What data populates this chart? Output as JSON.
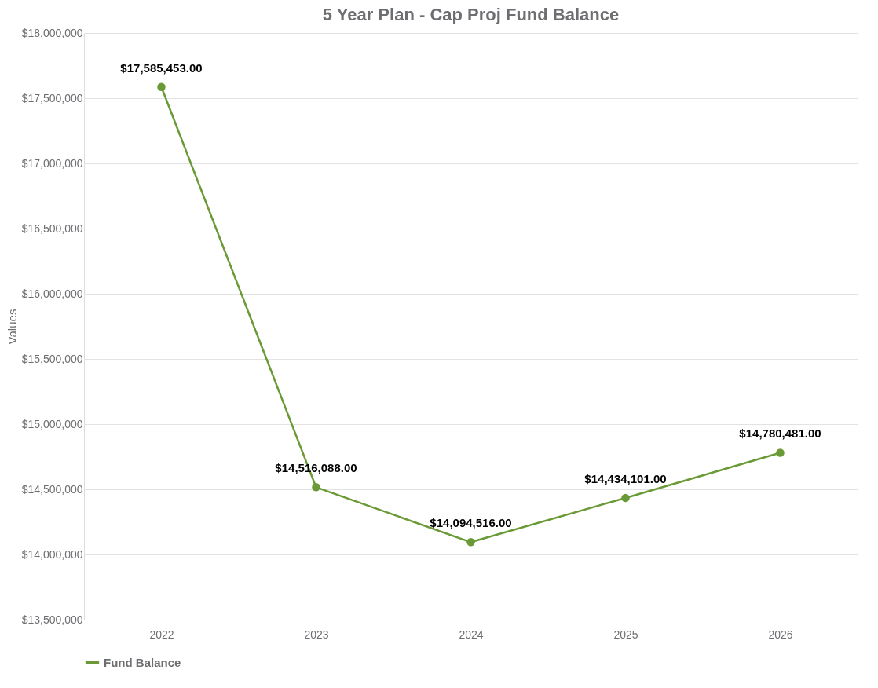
{
  "chart_data": {
    "type": "line",
    "title": "5 Year Plan - Cap Proj Fund Balance",
    "ylabel": "Values",
    "categories": [
      "2022",
      "2023",
      "2024",
      "2025",
      "2026"
    ],
    "series": [
      {
        "name": "Fund Balance",
        "color": "#6a9a35",
        "values": [
          17585453,
          14516088,
          14094516,
          14434101,
          14780481
        ],
        "value_labels": [
          "$17,585,453.00",
          "$14,516,088.00",
          "$14,094,516.00",
          "$14,434,101.00",
          "$14,780,481.00"
        ]
      }
    ],
    "ylim": [
      13500000,
      18000000
    ],
    "yticks": [
      {
        "value": 13500000,
        "label": "$13,500,000"
      },
      {
        "value": 14000000,
        "label": "$14,000,000"
      },
      {
        "value": 14500000,
        "label": "$14,500,000"
      },
      {
        "value": 15000000,
        "label": "$15,000,000"
      },
      {
        "value": 15500000,
        "label": "$15,500,000"
      },
      {
        "value": 16000000,
        "label": "$16,000,000"
      },
      {
        "value": 16500000,
        "label": "$16,500,000"
      },
      {
        "value": 17000000,
        "label": "$17,000,000"
      },
      {
        "value": 17500000,
        "label": "$17,500,000"
      },
      {
        "value": 18000000,
        "label": "$18,000,000"
      }
    ],
    "grid": "y",
    "legend": "bottom",
    "marker": "circle",
    "line_style": "solid"
  }
}
